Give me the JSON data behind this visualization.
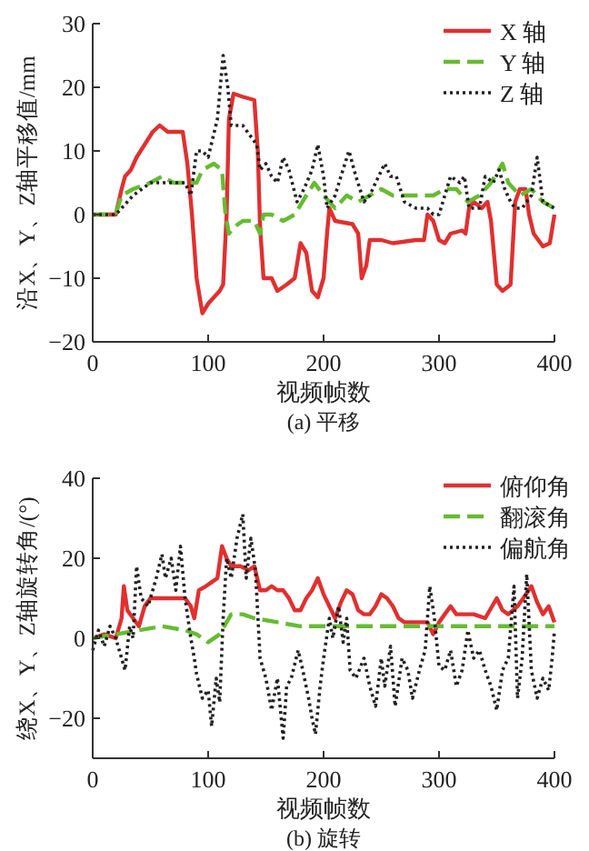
{
  "chart_data": [
    {
      "type": "line",
      "title": "(a) 平移",
      "xlabel": "视频帧数",
      "ylabel": "沿X、Y、Z轴平移值/mm",
      "xlim": [
        0,
        400
      ],
      "ylim": [
        -20,
        30
      ],
      "xticks": [
        0,
        100,
        200,
        300,
        400
      ],
      "yticks": [
        -20,
        -10,
        0,
        10,
        20,
        30
      ],
      "legend": "top right",
      "series": [
        {
          "name": "X 轴",
          "color": "#e03030",
          "line_style": "solid",
          "x": [
            0,
            20,
            25,
            28,
            33,
            38,
            45,
            52,
            58,
            65,
            78,
            82,
            86,
            90,
            95,
            100,
            105,
            110,
            113,
            116,
            118,
            122,
            130,
            140,
            143,
            145,
            148,
            155,
            160,
            168,
            175,
            180,
            185,
            190,
            195,
            200,
            203,
            205,
            210,
            225,
            230,
            233,
            237,
            240,
            250,
            260,
            280,
            287,
            290,
            295,
            300,
            305,
            310,
            320,
            323,
            326,
            330,
            337,
            342,
            345,
            350,
            355,
            362,
            366,
            370,
            375,
            378,
            382,
            390,
            396,
            400
          ],
          "values": [
            0,
            0,
            4,
            6,
            7,
            9,
            11,
            13,
            14,
            13,
            13,
            8,
            0,
            -10,
            -15.5,
            -14,
            -13,
            -12,
            -11,
            0,
            15,
            19,
            18.5,
            18,
            10,
            -2,
            -10,
            -10,
            -12,
            -11,
            -10,
            -4.5,
            -6,
            -12,
            -13,
            -10,
            -3,
            1,
            -1,
            -1.5,
            -3,
            -10,
            -8,
            -4,
            -4,
            -4.5,
            -4,
            -4,
            0,
            -1,
            -4,
            -4.5,
            -3,
            -2.5,
            -3,
            1,
            2,
            1,
            2,
            -1,
            -11,
            -12,
            -11,
            2,
            4,
            4,
            0,
            -3,
            -5,
            -4.5,
            0
          ]
        },
        {
          "name": "Y 轴",
          "color": "#66bb33",
          "line_style": "dashed",
          "x": [
            0,
            20,
            25,
            35,
            50,
            60,
            70,
            85,
            90,
            95,
            105,
            112,
            115,
            118,
            122,
            130,
            140,
            145,
            148,
            155,
            165,
            175,
            185,
            192,
            200,
            205,
            210,
            220,
            230,
            240,
            250,
            260,
            275,
            285,
            295,
            305,
            315,
            325,
            335,
            345,
            355,
            360,
            370,
            380,
            390,
            400
          ],
          "values": [
            0,
            0,
            3,
            4,
            5,
            6,
            5,
            5,
            5,
            7,
            8,
            7,
            0,
            -3,
            -2,
            -1,
            -1,
            -3,
            0,
            0,
            -1,
            0,
            3,
            5,
            3,
            2,
            1,
            3,
            2,
            3,
            4,
            3,
            3,
            3,
            3,
            4,
            4,
            2,
            3,
            5,
            8,
            5,
            3,
            4,
            2,
            1
          ]
        },
        {
          "name": "Z 轴",
          "color": "#222222",
          "line_style": "dotted",
          "x": [
            0,
            20,
            25,
            35,
            50,
            70,
            80,
            85,
            90,
            95,
            100,
            108,
            113,
            117,
            120,
            130,
            138,
            142,
            145,
            150,
            155,
            160,
            165,
            170,
            177,
            183,
            190,
            195,
            200,
            203,
            210,
            215,
            222,
            228,
            235,
            240,
            245,
            253,
            258,
            263,
            270,
            280,
            285,
            290,
            295,
            300,
            305,
            310,
            318,
            322,
            326,
            335,
            340,
            347,
            352,
            357,
            362,
            366,
            372,
            380,
            385,
            390,
            400
          ],
          "values": [
            0,
            0,
            1,
            3,
            5,
            5,
            5,
            3,
            10,
            10,
            9,
            15,
            25,
            20,
            14,
            14,
            12,
            11,
            7,
            8,
            6,
            5,
            9,
            7,
            2,
            4,
            7,
            11,
            6,
            1,
            3,
            6,
            10,
            6,
            2,
            3,
            5,
            8,
            6,
            6,
            2,
            1,
            1,
            1,
            0,
            0,
            3,
            6,
            5,
            6,
            1,
            1,
            6,
            5,
            7,
            4,
            2,
            1,
            1,
            3,
            9,
            2,
            1
          ]
        }
      ]
    },
    {
      "type": "line",
      "title": "(b) 旋转",
      "xlabel": "视频帧数",
      "ylabel": "绕X、Y、Z轴旋转角/(°)",
      "xlim": [
        0,
        400
      ],
      "ylim": [
        -30,
        40
      ],
      "xticks": [
        0,
        100,
        200,
        300,
        400
      ],
      "yticks": [
        -20,
        0,
        20,
        40
      ],
      "legend": "top right",
      "series": [
        {
          "name": "俯仰角",
          "color": "#e03030",
          "line_style": "solid",
          "x": [
            0,
            10,
            20,
            25,
            27,
            30,
            35,
            40,
            45,
            50,
            60,
            70,
            80,
            85,
            88,
            92,
            98,
            103,
            108,
            112,
            116,
            120,
            128,
            135,
            140,
            145,
            150,
            155,
            160,
            165,
            170,
            175,
            180,
            185,
            190,
            195,
            200,
            205,
            210,
            215,
            220,
            225,
            230,
            235,
            240,
            245,
            250,
            255,
            260,
            265,
            270,
            280,
            290,
            295,
            300,
            305,
            310,
            315,
            320,
            330,
            340,
            350,
            355,
            360,
            368,
            373,
            380,
            385,
            390,
            395,
            400
          ],
          "values": [
            0,
            1,
            0,
            5,
            13,
            7,
            5,
            3,
            8,
            10,
            10,
            10,
            10,
            8,
            5,
            12,
            13,
            14,
            15,
            23,
            20,
            18,
            18,
            17,
            18,
            12,
            12,
            13,
            12,
            12,
            10,
            7,
            7,
            10,
            12,
            15,
            11,
            8,
            5,
            9,
            12,
            11,
            7,
            6,
            6,
            8,
            11,
            10,
            8,
            5,
            4,
            4,
            4,
            1,
            4,
            6,
            8,
            6,
            6,
            6,
            5,
            10,
            7,
            6,
            8,
            10,
            13,
            9,
            6,
            8,
            4
          ]
        },
        {
          "name": "翻滚角",
          "color": "#66bb33",
          "line_style": "dashed",
          "x": [
            0,
            20,
            40,
            60,
            80,
            90,
            100,
            110,
            120,
            130,
            140,
            160,
            180,
            200,
            250,
            300,
            350,
            400
          ],
          "values": [
            0,
            1,
            2,
            3,
            2,
            1,
            -1,
            1,
            6,
            6,
            5,
            4,
            3,
            3,
            3,
            3,
            3,
            3
          ]
        },
        {
          "name": "偏航角",
          "color": "#222222",
          "line_style": "dotted",
          "x": [
            0,
            5,
            10,
            15,
            20,
            25,
            28,
            32,
            35,
            38,
            42,
            48,
            55,
            60,
            63,
            68,
            72,
            76,
            80,
            85,
            88,
            90,
            95,
            100,
            103,
            107,
            110,
            113,
            116,
            120,
            125,
            130,
            133,
            137,
            141,
            145,
            150,
            155,
            160,
            165,
            168,
            172,
            178,
            182,
            187,
            190,
            193,
            197,
            200,
            205,
            208,
            213,
            217,
            220,
            223,
            228,
            235,
            240,
            245,
            250,
            253,
            258,
            262,
            268,
            273,
            277,
            283,
            288,
            292,
            296,
            300,
            305,
            310,
            315,
            320,
            325,
            330,
            335,
            340,
            345,
            350,
            355,
            360,
            365,
            368,
            372,
            376,
            380,
            385,
            390,
            395,
            398,
            400
          ],
          "values": [
            -3,
            2,
            -2,
            3,
            0,
            -5,
            -8,
            3,
            0,
            18,
            10,
            8,
            15,
            21,
            15,
            20,
            12,
            23,
            10,
            0,
            -5,
            -9,
            -15,
            -13,
            -22,
            -10,
            -16,
            5,
            20,
            15,
            25,
            31,
            15,
            25,
            17,
            -5,
            -10,
            -18,
            -10,
            -25,
            -12,
            -10,
            -3,
            -8,
            -15,
            -20,
            -24,
            -12,
            -5,
            5,
            0,
            8,
            -1,
            5,
            -8,
            -10,
            -5,
            -12,
            -17,
            -5,
            -12,
            -2,
            -17,
            -5,
            -8,
            -15,
            -8,
            -3,
            13,
            5,
            -7,
            -8,
            -3,
            -12,
            -8,
            2,
            -5,
            -3,
            -8,
            -12,
            -18,
            -8,
            -5,
            13,
            -15,
            -5,
            16,
            -8,
            -15,
            -10,
            -13,
            -5,
            2
          ]
        }
      ]
    }
  ]
}
